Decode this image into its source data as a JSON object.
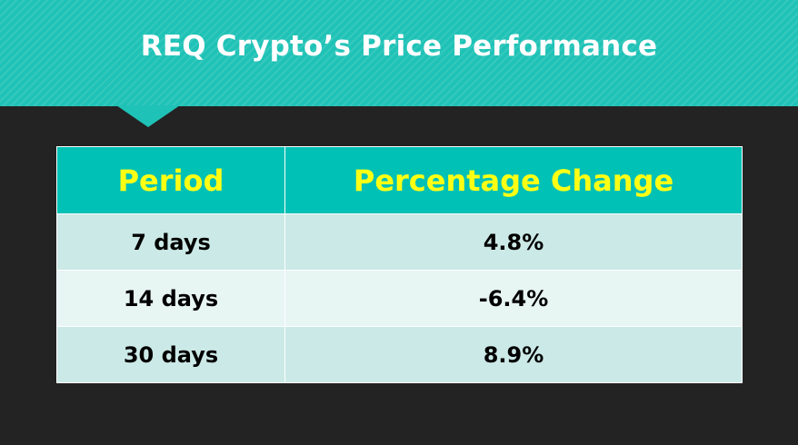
{
  "title": "REQ Crypto’s Price Performance",
  "table": {
    "headers": [
      "Period",
      "Percentage Change"
    ],
    "rows": [
      {
        "period": "7 days",
        "change": "4.8%"
      },
      {
        "period": "14 days",
        "change": "-6.4%"
      },
      {
        "period": "30 days",
        "change": "8.9%"
      }
    ]
  },
  "colors": {
    "header_band": "#1fc2b6",
    "table_header_bg": "#00c1b5",
    "table_header_text": "#ffff14",
    "row_dark": "#cbe9e6",
    "row_light": "#e7f5f3",
    "background": "#232323"
  },
  "chart_data": {
    "type": "table",
    "title": "REQ Crypto’s Price Performance",
    "columns": [
      "Period",
      "Percentage Change"
    ],
    "categories": [
      "7 days",
      "14 days",
      "30 days"
    ],
    "values": [
      4.8,
      -6.4,
      8.9
    ],
    "unit": "%"
  }
}
